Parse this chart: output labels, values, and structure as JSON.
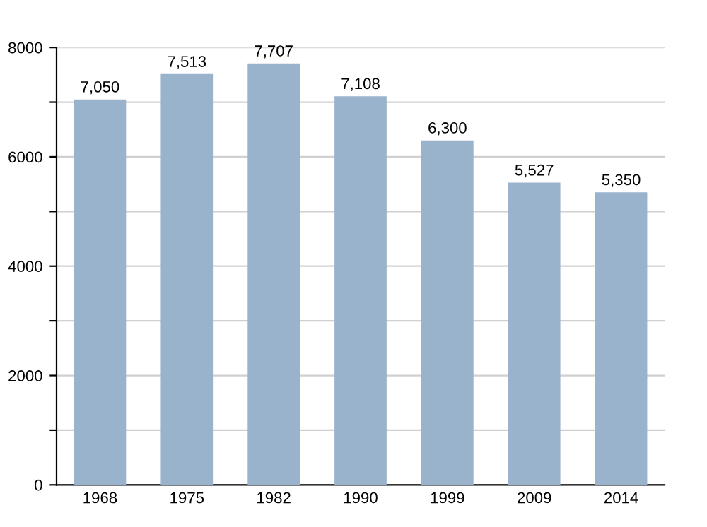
{
  "chart_data": {
    "type": "bar",
    "categories": [
      "1968",
      "1975",
      "1982",
      "1990",
      "1999",
      "2009",
      "2014"
    ],
    "values": [
      7050,
      7513,
      7707,
      7108,
      6300,
      5527,
      5350
    ],
    "value_labels": [
      "7,050",
      "7,513",
      "7,707",
      "7,108",
      "6,300",
      "5,527",
      "5,350"
    ],
    "color": "#9ab3cc",
    "ylim": [
      0,
      8000
    ],
    "yticks": [
      0,
      {
        "value": 1000,
        "label": null
      },
      2000,
      {
        "value": 3000,
        "label": null
      },
      4000,
      {
        "value": 5000,
        "label": null
      },
      6000,
      {
        "value": 7000,
        "label": null
      },
      8000
    ],
    "grid": "y"
  }
}
